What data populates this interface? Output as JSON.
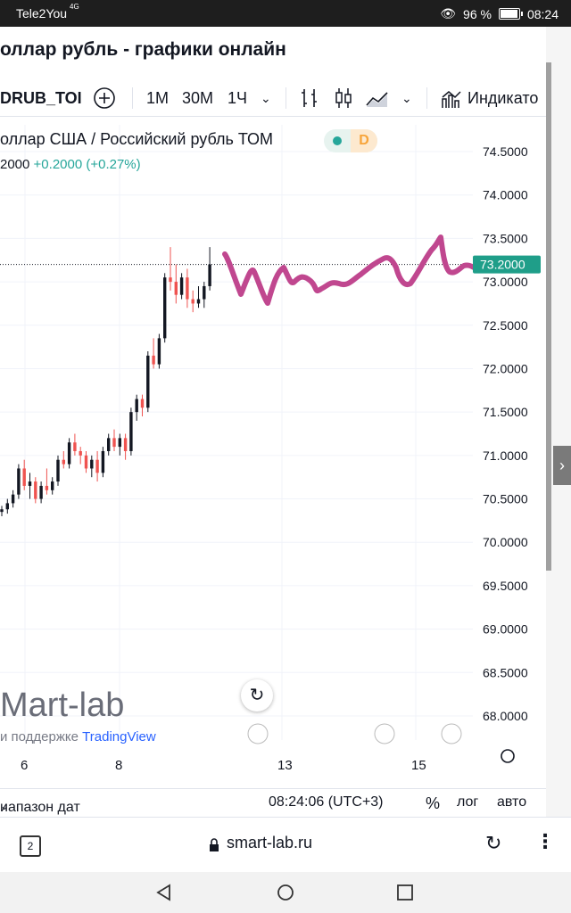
{
  "status": {
    "carrier": "Tele2You",
    "network": "4G",
    "battery_percent": "96 %",
    "time": "08:24"
  },
  "page_title": "оллар рубль - графики онлайн",
  "toolbar": {
    "symbol": "DRUB_TOI",
    "intervals": [
      "1М",
      "30М",
      "1Ч"
    ],
    "indicators_label": "Индикато"
  },
  "legend": {
    "name": "оллар США / Российский рубль ТОМ",
    "close": "2000",
    "change": "+0.2000 (+0.27%)",
    "badge": "D"
  },
  "price_tag": "73.2000",
  "watermark": {
    "brand": "Mart-lab",
    "support": "и поддержке",
    "provider": "TradingView"
  },
  "bottom_bar": {
    "date_range": "иапазон дат",
    "clock": "08:24:06 (UTC+3)",
    "percent": "%",
    "log": "лог",
    "auto": "авто"
  },
  "address_bar": {
    "tab_count": "2",
    "url": "smart-lab.ru"
  },
  "colors": {
    "up": "#26a69a",
    "down": "#ef5350",
    "tag": "#1f9e89",
    "scribble": "#c0478f"
  },
  "chart_data": {
    "type": "candlestick",
    "title": "",
    "y_ticks": [
      "74.5000",
      "74.0000",
      "73.5000",
      "73.0000",
      "72.5000",
      "72.0000",
      "71.5000",
      "71.0000",
      "70.5000",
      "70.0000",
      "69.5000",
      "69.0000",
      "68.5000",
      "68.0000"
    ],
    "x_ticks": [
      "6",
      "8",
      "13",
      "15"
    ],
    "ylim": [
      67.8,
      74.7
    ],
    "last_price": 73.2,
    "candles": [
      {
        "o": 70.35,
        "h": 70.42,
        "l": 70.3,
        "c": 70.38
      },
      {
        "o": 70.38,
        "h": 70.5,
        "l": 70.33,
        "c": 70.45
      },
      {
        "o": 70.45,
        "h": 70.6,
        "l": 70.4,
        "c": 70.55
      },
      {
        "o": 70.55,
        "h": 70.9,
        "l": 70.5,
        "c": 70.85
      },
      {
        "o": 70.85,
        "h": 70.95,
        "l": 70.6,
        "c": 70.65
      },
      {
        "o": 70.65,
        "h": 70.8,
        "l": 70.5,
        "c": 70.7
      },
      {
        "o": 70.7,
        "h": 70.75,
        "l": 70.45,
        "c": 70.5
      },
      {
        "o": 70.5,
        "h": 70.7,
        "l": 70.45,
        "c": 70.65
      },
      {
        "o": 70.65,
        "h": 70.85,
        "l": 70.55,
        "c": 70.6
      },
      {
        "o": 70.6,
        "h": 70.75,
        "l": 70.55,
        "c": 70.7
      },
      {
        "o": 70.7,
        "h": 71.0,
        "l": 70.65,
        "c": 70.95
      },
      {
        "o": 70.95,
        "h": 71.05,
        "l": 70.85,
        "c": 70.9
      },
      {
        "o": 70.9,
        "h": 71.2,
        "l": 70.85,
        "c": 71.15
      },
      {
        "o": 71.15,
        "h": 71.25,
        "l": 71.0,
        "c": 71.05
      },
      {
        "o": 71.05,
        "h": 71.1,
        "l": 70.9,
        "c": 71.0
      },
      {
        "o": 71.0,
        "h": 71.05,
        "l": 70.8,
        "c": 70.85
      },
      {
        "o": 70.85,
        "h": 71.0,
        "l": 70.75,
        "c": 70.95
      },
      {
        "o": 70.95,
        "h": 71.05,
        "l": 70.7,
        "c": 70.8
      },
      {
        "o": 70.8,
        "h": 71.1,
        "l": 70.75,
        "c": 71.05
      },
      {
        "o": 71.05,
        "h": 71.25,
        "l": 71.0,
        "c": 71.2
      },
      {
        "o": 71.2,
        "h": 71.3,
        "l": 71.05,
        "c": 71.1
      },
      {
        "o": 71.1,
        "h": 71.25,
        "l": 71.0,
        "c": 71.2
      },
      {
        "o": 71.2,
        "h": 71.25,
        "l": 70.95,
        "c": 71.05
      },
      {
        "o": 71.05,
        "h": 71.55,
        "l": 71.0,
        "c": 71.5
      },
      {
        "o": 71.5,
        "h": 71.7,
        "l": 71.4,
        "c": 71.65
      },
      {
        "o": 71.65,
        "h": 71.7,
        "l": 71.45,
        "c": 71.55
      },
      {
        "o": 71.55,
        "h": 72.2,
        "l": 71.5,
        "c": 72.15
      },
      {
        "o": 72.15,
        "h": 72.35,
        "l": 72.0,
        "c": 72.05
      },
      {
        "o": 72.05,
        "h": 72.4,
        "l": 72.0,
        "c": 72.35
      },
      {
        "o": 72.35,
        "h": 73.1,
        "l": 72.3,
        "c": 73.05
      },
      {
        "o": 73.05,
        "h": 73.4,
        "l": 72.9,
        "c": 73.0
      },
      {
        "o": 73.0,
        "h": 73.2,
        "l": 72.75,
        "c": 72.85
      },
      {
        "o": 72.85,
        "h": 73.1,
        "l": 72.8,
        "c": 73.05
      },
      {
        "o": 73.05,
        "h": 73.15,
        "l": 72.7,
        "c": 72.8
      },
      {
        "o": 72.8,
        "h": 72.9,
        "l": 72.65,
        "c": 72.75
      },
      {
        "o": 72.75,
        "h": 72.95,
        "l": 72.7,
        "c": 72.8
      },
      {
        "o": 72.8,
        "h": 73.0,
        "l": 72.7,
        "c": 72.95
      },
      {
        "o": 72.95,
        "h": 73.4,
        "l": 72.9,
        "c": 73.2
      }
    ]
  }
}
